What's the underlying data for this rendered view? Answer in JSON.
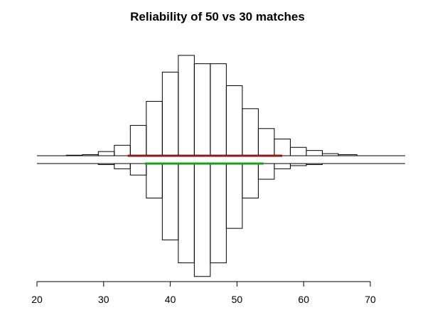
{
  "chart_data": {
    "type": "bar",
    "title": "Reliability of 50 vs 30 matches",
    "xlabel": "",
    "ylabel": "",
    "xlim": [
      20,
      75
    ],
    "x_ticks": [
      20,
      30,
      40,
      50,
      60,
      70
    ],
    "bin_width": 2.4,
    "series": [
      {
        "direction": "up",
        "bins": [
          {
            "start": 24.4,
            "end": 26.8,
            "count": 0.5
          },
          {
            "start": 26.8,
            "end": 29.2,
            "count": 1
          },
          {
            "start": 29.2,
            "end": 31.6,
            "count": 4
          },
          {
            "start": 31.6,
            "end": 34.0,
            "count": 10
          },
          {
            "start": 34.0,
            "end": 36.4,
            "count": 29
          },
          {
            "start": 36.4,
            "end": 38.8,
            "count": 52
          },
          {
            "start": 38.8,
            "end": 41.2,
            "count": 80
          },
          {
            "start": 41.2,
            "end": 43.6,
            "count": 96
          },
          {
            "start": 43.6,
            "end": 46.0,
            "count": 88
          },
          {
            "start": 46.0,
            "end": 48.4,
            "count": 88
          },
          {
            "start": 48.4,
            "end": 50.8,
            "count": 67
          },
          {
            "start": 50.8,
            "end": 53.2,
            "count": 45
          },
          {
            "start": 53.2,
            "end": 55.6,
            "count": 26
          },
          {
            "start": 55.6,
            "end": 58.0,
            "count": 16
          },
          {
            "start": 58.0,
            "end": 60.4,
            "count": 8
          },
          {
            "start": 60.4,
            "end": 62.8,
            "count": 5
          },
          {
            "start": 62.8,
            "end": 65.2,
            "count": 2
          },
          {
            "start": 65.2,
            "end": 68.0,
            "count": 1
          }
        ],
        "interval": {
          "low": 33.6,
          "high": 56.8,
          "color": "#8b1a1a"
        }
      },
      {
        "direction": "down",
        "bins": [
          {
            "start": 29.2,
            "end": 31.6,
            "count": 1
          },
          {
            "start": 31.6,
            "end": 34.0,
            "count": 5
          },
          {
            "start": 34.0,
            "end": 36.4,
            "count": 11
          },
          {
            "start": 36.4,
            "end": 38.8,
            "count": 33
          },
          {
            "start": 38.8,
            "end": 41.2,
            "count": 73
          },
          {
            "start": 41.2,
            "end": 43.6,
            "count": 95
          },
          {
            "start": 43.6,
            "end": 46.0,
            "count": 108
          },
          {
            "start": 46.0,
            "end": 48.4,
            "count": 95
          },
          {
            "start": 48.4,
            "end": 50.8,
            "count": 62
          },
          {
            "start": 50.8,
            "end": 53.2,
            "count": 33
          },
          {
            "start": 53.2,
            "end": 55.6,
            "count": 15
          },
          {
            "start": 55.6,
            "end": 58.0,
            "count": 5
          },
          {
            "start": 58.0,
            "end": 60.4,
            "count": 2
          },
          {
            "start": 60.4,
            "end": 62.8,
            "count": 1
          }
        ],
        "interval": {
          "low": 36.2,
          "high": 54.0,
          "color": "#1e9c1e"
        }
      }
    ],
    "grid": false,
    "legend": "none"
  }
}
